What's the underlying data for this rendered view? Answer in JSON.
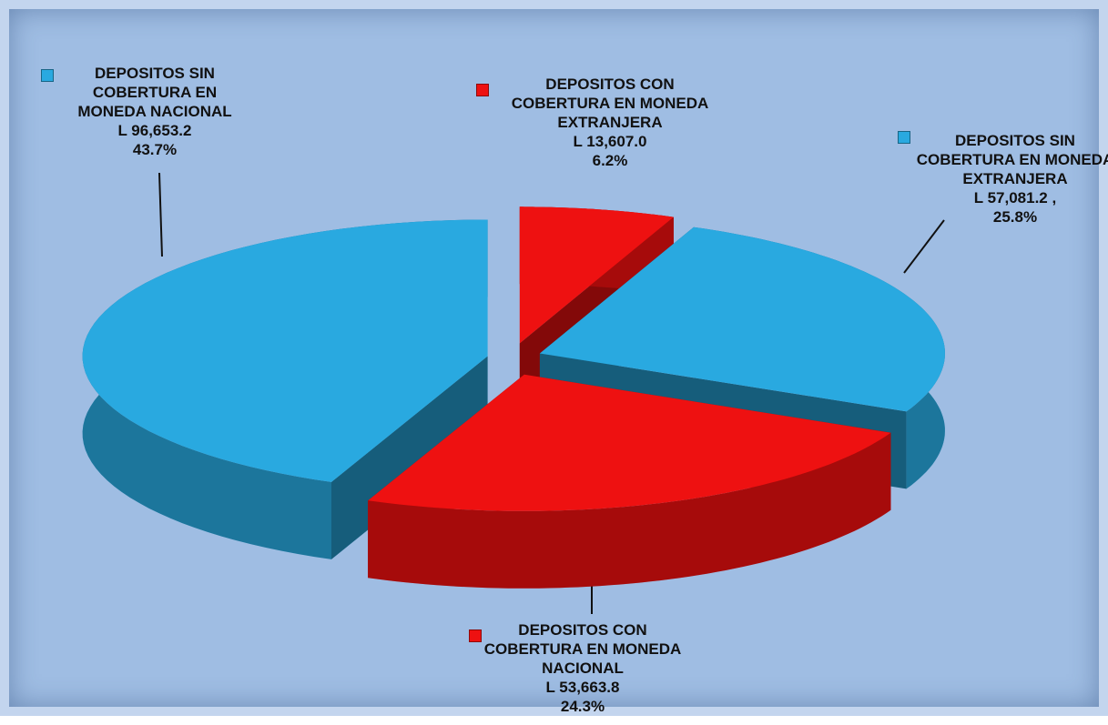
{
  "chart_data": {
    "type": "pie",
    "categories": [
      "DEPOSITOS CON COBERTURA EN MONEDA EXTRANJERA",
      "DEPOSITOS SIN COBERTURA EN MONEDA EXTRANJERA",
      "DEPOSITOS CON COBERTURA EN MONEDA NACIONAL",
      "DEPOSITOS SIN COBERTURA EN MONEDA NACIONAL"
    ],
    "values": [
      6.2,
      25.8,
      24.3,
      43.7
    ],
    "value_labels": [
      "6.2%",
      "25.8%",
      "24.3%",
      "43.7%"
    ],
    "amounts": [
      13607.0,
      57081.2,
      53663.8,
      96653.2
    ],
    "amount_labels": [
      "L 13,607.0",
      "L 57,081.2 ,",
      "L 53,663.8",
      "L 96,653.2"
    ],
    "colors": [
      "#ee1111",
      "#29a9e0",
      "#ee1111",
      "#29a9e0"
    ]
  }
}
